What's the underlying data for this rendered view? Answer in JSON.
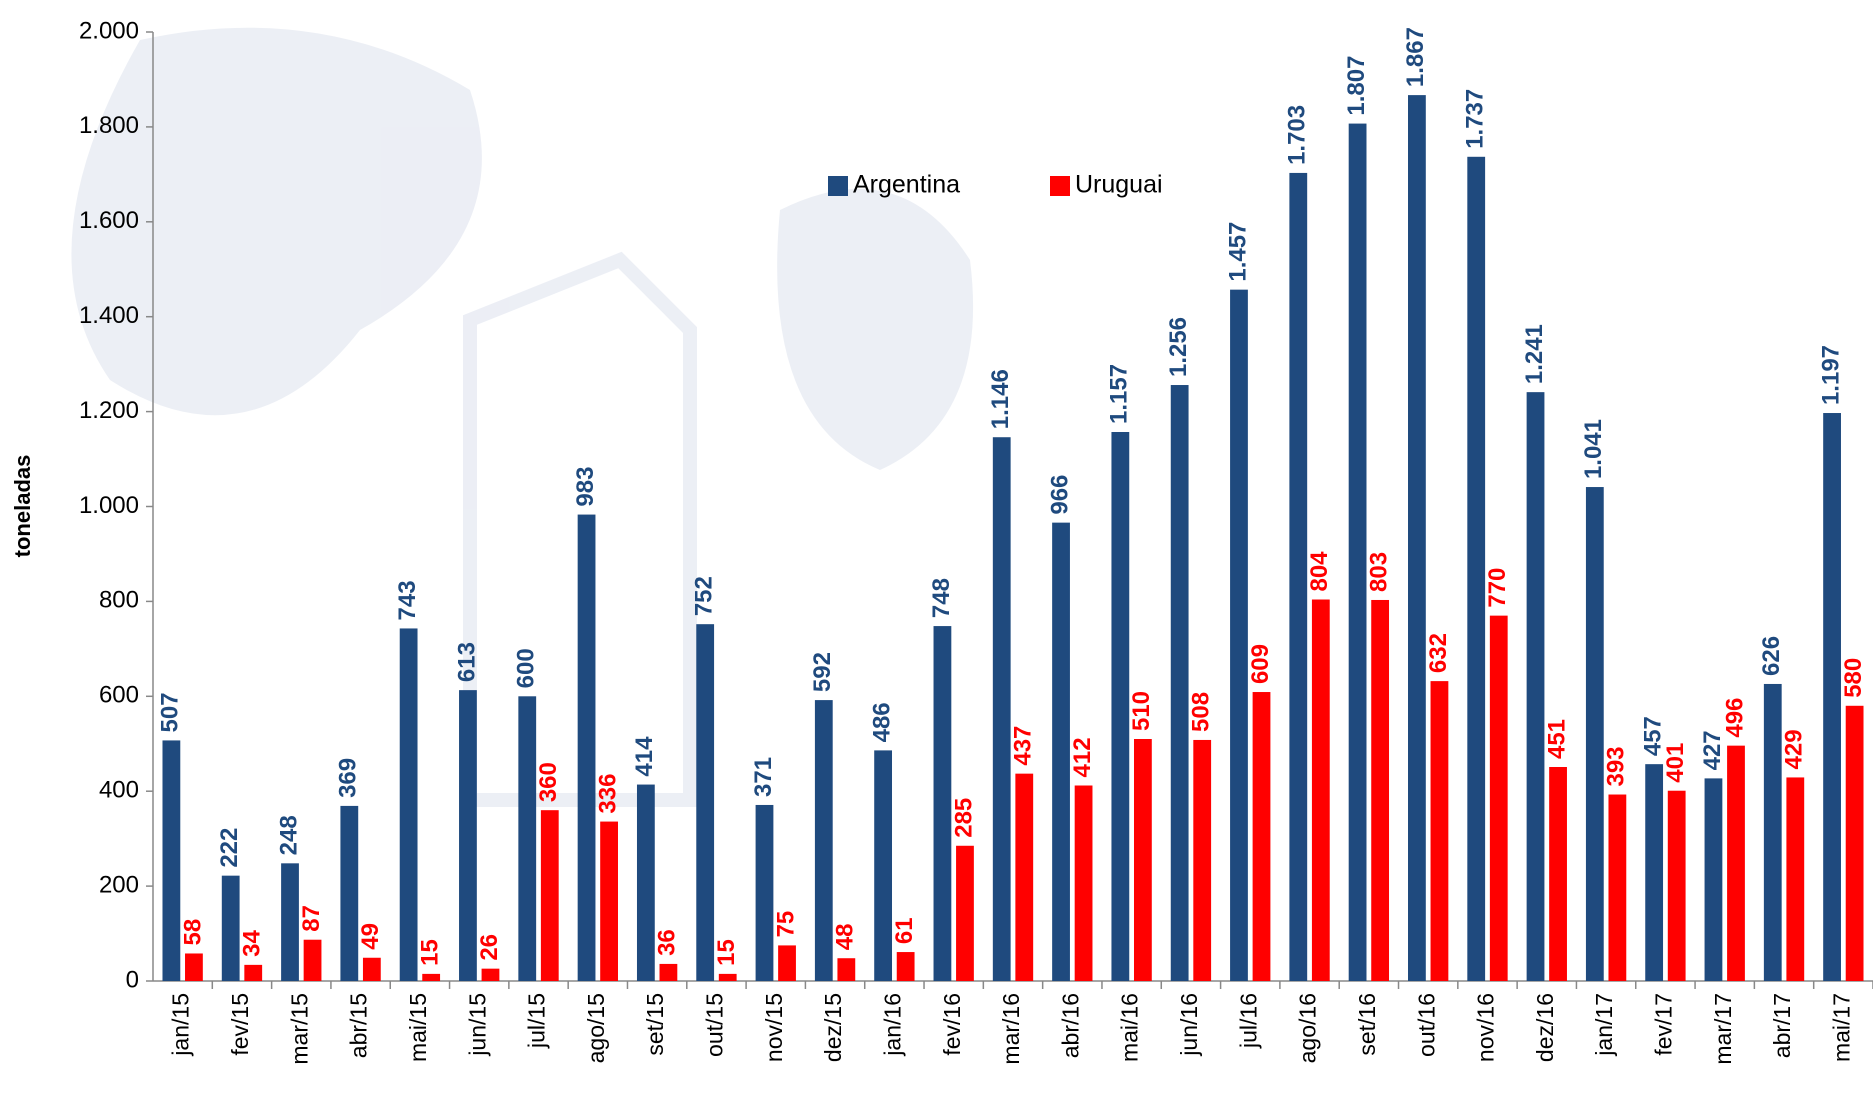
{
  "chart_data": {
    "type": "bar",
    "y_label": "toneladas",
    "categories": [
      "jan/15",
      "fev/15",
      "mar/15",
      "abr/15",
      "mai/15",
      "jun/15",
      "jul/15",
      "ago/15",
      "set/15",
      "out/15",
      "nov/15",
      "dez/15",
      "jan/16",
      "fev/16",
      "mar/16",
      "abr/16",
      "mai/16",
      "jun/16",
      "jul/16",
      "ago/16",
      "set/16",
      "out/16",
      "nov/16",
      "dez/16",
      "jan/17",
      "fev/17",
      "mar/17",
      "abr/17",
      "mai/17"
    ],
    "series": [
      {
        "name": "Argentina",
        "color": "#1f4a7e",
        "values": [
          507,
          222,
          248,
          369,
          743,
          613,
          600,
          983,
          414,
          752,
          371,
          592,
          486,
          748,
          1146,
          966,
          1157,
          1256,
          1457,
          1703,
          1807,
          1867,
          1737,
          1241,
          1041,
          457,
          427,
          626,
          1197
        ],
        "value_labels": [
          "507",
          "222",
          "248",
          "369",
          "743",
          "613",
          "600",
          "983",
          "414",
          "752",
          "371",
          "592",
          "486",
          "748",
          "1.146",
          "966",
          "1.157",
          "1.256",
          "1.457",
          "1.703",
          "1.807",
          "1.867",
          "1.737",
          "1.241",
          "1.041",
          "457",
          "427",
          "626",
          "1.197"
        ]
      },
      {
        "name": "Uruguai",
        "color": "#ff0000",
        "values": [
          58,
          34,
          87,
          49,
          15,
          26,
          360,
          336,
          36,
          15,
          75,
          48,
          61,
          285,
          437,
          412,
          510,
          508,
          609,
          804,
          803,
          632,
          770,
          451,
          393,
          401,
          496,
          429,
          580
        ]
      }
    ],
    "ylim": [
      0,
      2000
    ],
    "yticks": [
      0,
      200,
      400,
      600,
      800,
      {
        "value": 1000,
        "label": "1.000"
      },
      {
        "value": 1200,
        "label": "1.200"
      },
      {
        "value": 1400,
        "label": "1.400"
      },
      {
        "value": 1600,
        "label": "1.600"
      },
      {
        "value": 1800,
        "label": "1.800"
      },
      {
        "value": 2000,
        "label": "2.000"
      }
    ],
    "grid": false,
    "legend": "top"
  }
}
